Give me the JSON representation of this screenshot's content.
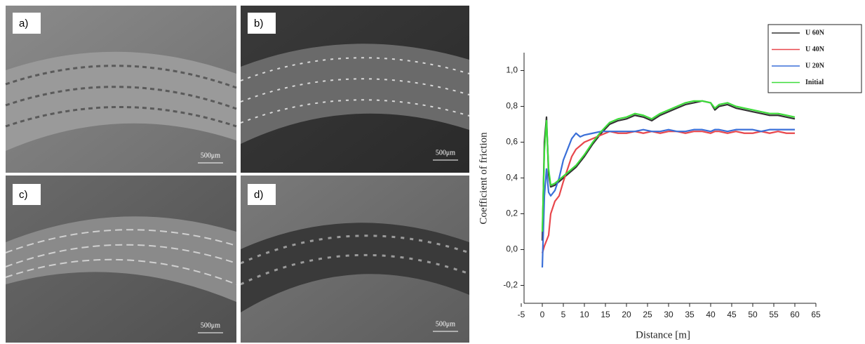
{
  "panels": [
    {
      "label": "a)",
      "scale": "500μm"
    },
    {
      "label": "b)",
      "scale": "500μm"
    },
    {
      "label": "c)",
      "scale": "500μm"
    },
    {
      "label": "d)",
      "scale": "500μm"
    }
  ],
  "chart_data": {
    "type": "line",
    "xlabel": "Distance [m]",
    "ylabel": "Coefficient of friction",
    "xlim": [
      -5,
      65
    ],
    "ylim": [
      -0.3,
      1.1
    ],
    "xticks": [
      -5,
      0,
      5,
      10,
      15,
      20,
      25,
      30,
      35,
      40,
      45,
      50,
      55,
      60,
      65
    ],
    "yticks": [
      {
        "value": -0.2,
        "label": "-0,2"
      },
      {
        "value": 0,
        "label": "0,0"
      },
      {
        "value": 0.2,
        "label": "0,2"
      },
      {
        "value": 0.4,
        "label": "0,4"
      },
      {
        "value": 0.6,
        "label": "0,6"
      },
      {
        "value": 0.8,
        "label": "0,8"
      },
      {
        "value": 1,
        "label": "1,0"
      }
    ],
    "legend": "upper right",
    "x": [
      0,
      0.5,
      1,
      1.5,
      2,
      3,
      4,
      5,
      6,
      7,
      8,
      9,
      10,
      12,
      14,
      16,
      18,
      20,
      22,
      24,
      26,
      28,
      30,
      32,
      34,
      36,
      38,
      40,
      41,
      42,
      44,
      46,
      48,
      50,
      52,
      54,
      56,
      58,
      60
    ],
    "series": [
      {
        "name": "U 60N",
        "color": "#333333",
        "values": [
          0.05,
          0.6,
          0.74,
          0.42,
          0.35,
          0.36,
          0.38,
          0.4,
          0.42,
          0.44,
          0.46,
          0.49,
          0.52,
          0.59,
          0.65,
          0.7,
          0.72,
          0.73,
          0.75,
          0.74,
          0.72,
          0.75,
          0.77,
          0.79,
          0.81,
          0.82,
          0.83,
          0.82,
          0.78,
          0.8,
          0.81,
          0.79,
          0.78,
          0.77,
          0.76,
          0.75,
          0.75,
          0.74,
          0.73
        ]
      },
      {
        "name": "U 40N",
        "color": "#e8474c",
        "values": [
          -0.02,
          0.02,
          0.05,
          0.08,
          0.2,
          0.27,
          0.3,
          0.38,
          0.45,
          0.52,
          0.56,
          0.58,
          0.6,
          0.62,
          0.64,
          0.66,
          0.65,
          0.65,
          0.66,
          0.65,
          0.66,
          0.65,
          0.66,
          0.66,
          0.65,
          0.66,
          0.66,
          0.65,
          0.66,
          0.66,
          0.65,
          0.66,
          0.65,
          0.65,
          0.66,
          0.65,
          0.66,
          0.65,
          0.65
        ]
      },
      {
        "name": "U 20N",
        "color": "#3a6fd8",
        "values": [
          -0.1,
          0.3,
          0.45,
          0.32,
          0.3,
          0.33,
          0.4,
          0.5,
          0.56,
          0.62,
          0.65,
          0.63,
          0.64,
          0.65,
          0.66,
          0.66,
          0.66,
          0.66,
          0.66,
          0.67,
          0.66,
          0.66,
          0.67,
          0.66,
          0.66,
          0.67,
          0.67,
          0.66,
          0.67,
          0.67,
          0.66,
          0.67,
          0.67,
          0.67,
          0.66,
          0.67,
          0.67,
          0.67,
          0.67
        ]
      },
      {
        "name": "Initial",
        "color": "#3ddc3a",
        "values": [
          0.1,
          0.55,
          0.72,
          0.45,
          0.36,
          0.37,
          0.39,
          0.41,
          0.43,
          0.45,
          0.47,
          0.5,
          0.53,
          0.6,
          0.66,
          0.71,
          0.73,
          0.74,
          0.76,
          0.75,
          0.73,
          0.76,
          0.78,
          0.8,
          0.82,
          0.83,
          0.83,
          0.82,
          0.79,
          0.81,
          0.82,
          0.8,
          0.79,
          0.78,
          0.77,
          0.76,
          0.76,
          0.75,
          0.74
        ]
      }
    ]
  }
}
